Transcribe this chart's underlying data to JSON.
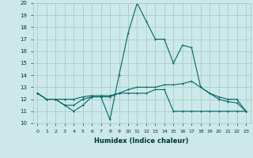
{
  "xlabel": "Humidex (Indice chaleur)",
  "x": [
    0,
    1,
    2,
    3,
    4,
    5,
    6,
    7,
    8,
    9,
    10,
    11,
    12,
    13,
    14,
    15,
    16,
    17,
    18,
    19,
    20,
    21,
    22,
    23
  ],
  "line1": [
    12.5,
    12.0,
    12.0,
    11.5,
    11.0,
    11.5,
    12.2,
    12.2,
    10.3,
    14.0,
    17.5,
    20.0,
    18.5,
    17.0,
    17.0,
    15.0,
    16.5,
    16.3,
    13.0,
    12.5,
    12.0,
    11.8,
    11.7,
    11.0
  ],
  "line2": [
    12.5,
    12.0,
    12.0,
    11.5,
    11.5,
    12.0,
    12.2,
    12.2,
    12.2,
    12.5,
    12.5,
    12.5,
    12.5,
    12.8,
    12.8,
    11.0,
    11.0,
    11.0,
    11.0,
    11.0,
    11.0,
    11.0,
    11.0,
    11.0
  ],
  "line3": [
    12.5,
    12.0,
    12.0,
    12.0,
    12.0,
    12.2,
    12.3,
    12.3,
    12.3,
    12.5,
    12.8,
    13.0,
    13.0,
    13.0,
    13.2,
    13.2,
    13.3,
    13.5,
    13.0,
    12.5,
    12.2,
    12.0,
    12.0,
    11.0
  ],
  "ylim": [
    10,
    20
  ],
  "xlim": [
    -0.5,
    23.5
  ],
  "bg_color": "#cce8e8",
  "grid_color": "#aacccc",
  "line_color": "#006666"
}
